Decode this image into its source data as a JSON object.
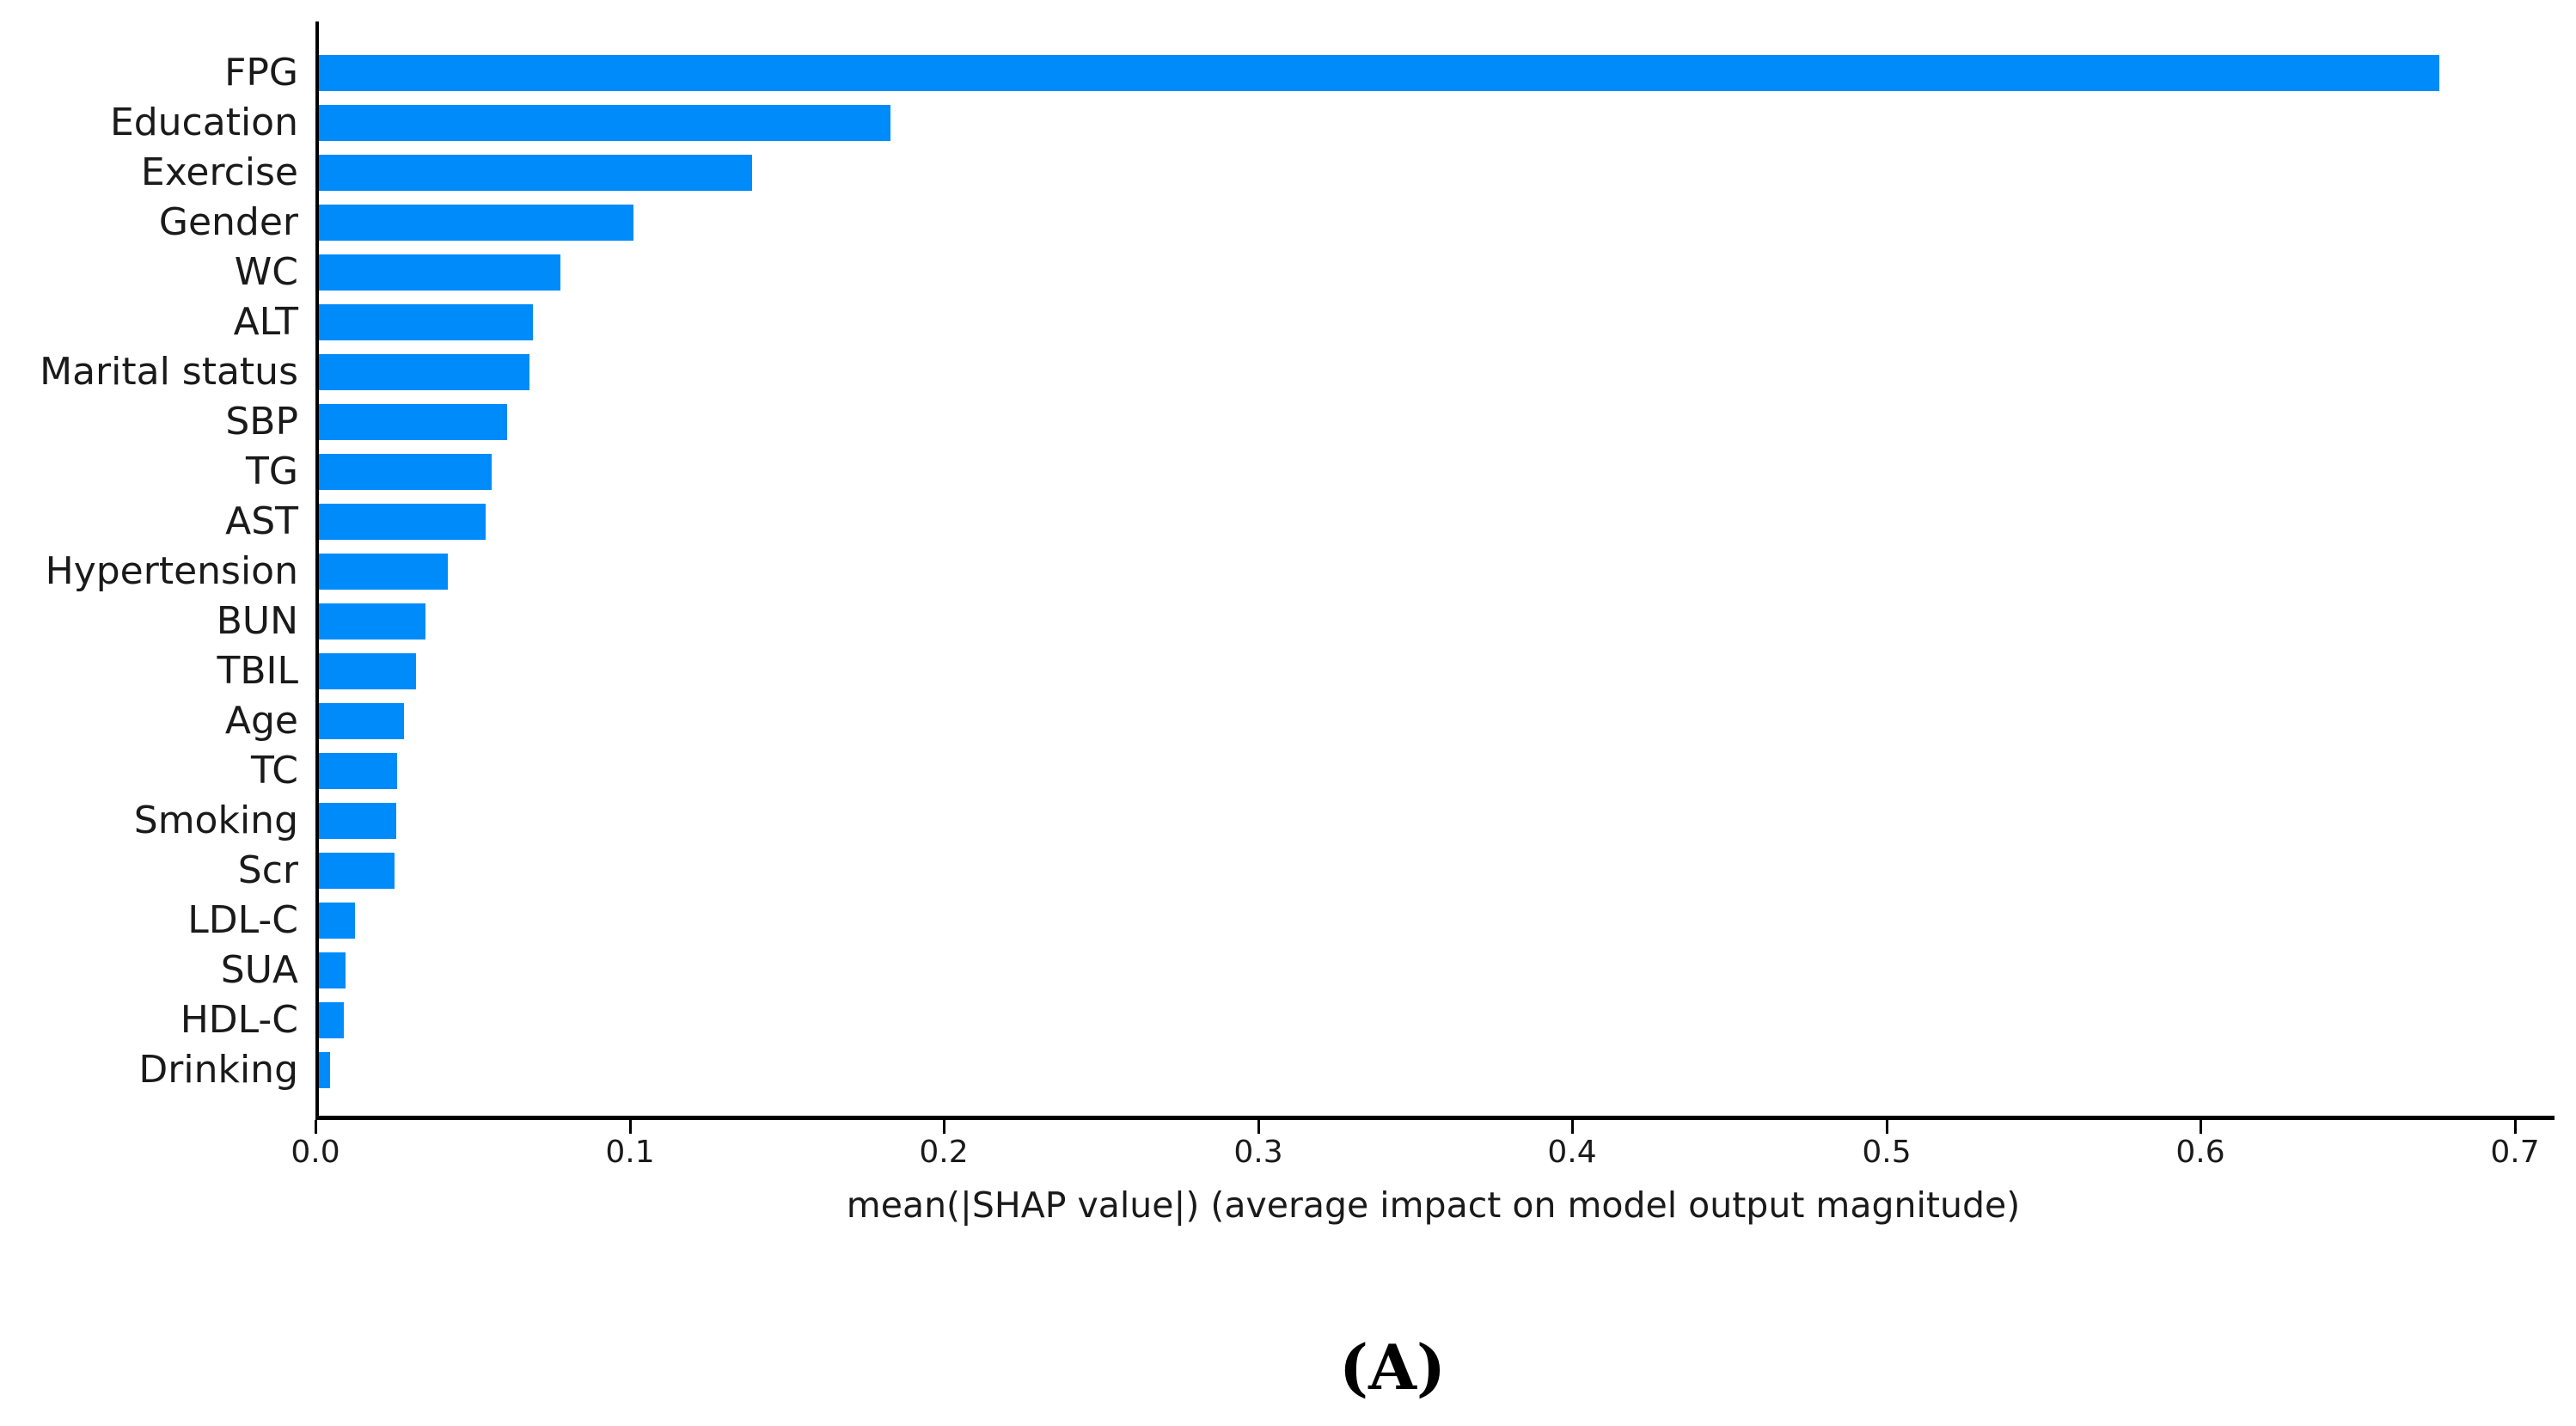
{
  "figure": {
    "caption": "(A)",
    "background_color": "#ffffff"
  },
  "chart_data": {
    "type": "bar",
    "orientation": "horizontal",
    "title": "",
    "xlabel": "mean(|SHAP value|) (average impact on model output magnitude)",
    "ylabel": "",
    "categories": [
      "FPG",
      "Education",
      "Exercise",
      "Gender",
      "WC",
      "ALT",
      "Marital status",
      "SBP",
      "TG",
      "AST",
      "Hypertension",
      "BUN",
      "TBIL",
      "Age",
      "TC",
      "Smoking",
      "Scr",
      "LDL-C",
      "SUA",
      "HDL-C",
      "Drinking"
    ],
    "values": [
      0.675,
      0.182,
      0.138,
      0.1,
      0.077,
      0.068,
      0.067,
      0.06,
      0.055,
      0.053,
      0.041,
      0.034,
      0.031,
      0.027,
      0.025,
      0.0245,
      0.024,
      0.0115,
      0.0085,
      0.008,
      0.0035
    ],
    "xlim": [
      0.0,
      0.712
    ],
    "xticks": [
      0.0,
      0.1,
      0.2,
      0.3,
      0.4,
      0.5,
      0.6,
      0.7
    ],
    "xtick_labels": [
      "0.0",
      "0.1",
      "0.2",
      "0.3",
      "0.4",
      "0.5",
      "0.6",
      "0.7"
    ],
    "grid": false,
    "legend_position": "none",
    "bar_color": "#008bfb",
    "axis_color": "#000000",
    "text_color": "#1a1a1a"
  }
}
